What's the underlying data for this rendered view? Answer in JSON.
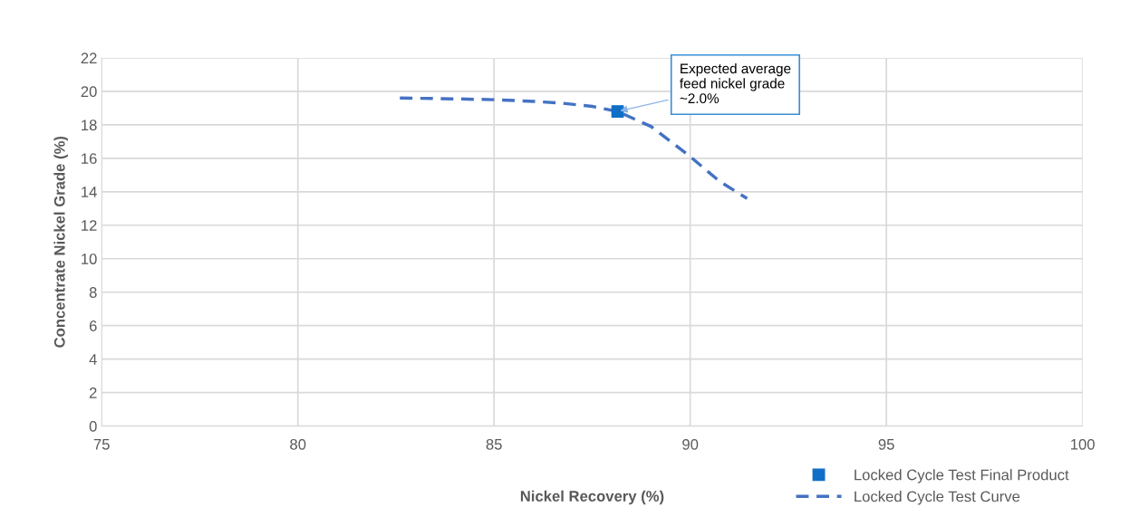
{
  "chart_data": {
    "type": "line",
    "xlabel": "Nickel Recovery (%)",
    "ylabel": "Concentrate Nickel Grade (%)",
    "xlim": [
      75,
      100
    ],
    "xticks": [
      75,
      80,
      85,
      90,
      95,
      100
    ],
    "ylim": [
      0,
      22
    ],
    "yticks": [
      0,
      2,
      4,
      6,
      8,
      10,
      12,
      14,
      16,
      18,
      20,
      22
    ],
    "grid": true,
    "legend": "bottom right",
    "series": [
      {
        "name": "Locked Cycle Test Final Product",
        "type": "scatter",
        "color": "#0f6fc6",
        "marker": "square",
        "x": [
          88.15
        ],
        "values": [
          18.8
        ]
      },
      {
        "name": "Locked Cycle Test Curve",
        "color": "#4472c4",
        "line_style": "dashed",
        "marker": "none",
        "x": [
          82.6,
          84.0,
          85.0,
          86.0,
          86.7,
          87.5,
          88.15,
          89.0,
          89.95,
          90.76,
          91.45
        ],
        "values": [
          19.6,
          19.55,
          19.5,
          19.4,
          19.3,
          19.1,
          18.8,
          17.9,
          16.2,
          14.6,
          13.6
        ]
      }
    ],
    "annotations": [
      {
        "text": "Expected average\nfeed nickel grade\n~2.0%",
        "x": 88.15,
        "y": 18.8
      }
    ]
  }
}
